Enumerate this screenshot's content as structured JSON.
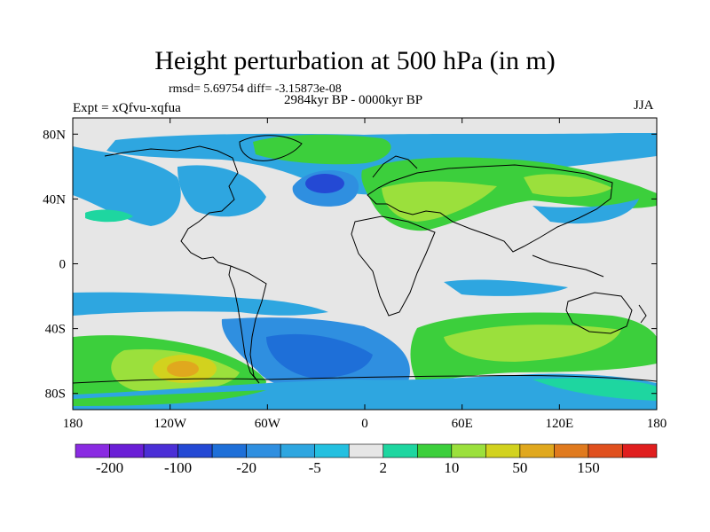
{
  "title": "Height perturbation at 500 hPa (in m)",
  "stats": "rmsd= 5.69754  diff= -3.15873e-08",
  "period": "2984kyr BP - 0000kyr BP",
  "experiment": "Expt = xQfvu-xqfua",
  "season": "JJA",
  "map": {
    "projection": "cylindrical-equidistant",
    "lon_range": [
      -180,
      180
    ],
    "lat_range": [
      -90,
      90
    ],
    "lon_ticks": [
      {
        "value": -180,
        "label": "180"
      },
      {
        "value": -120,
        "label": "120W"
      },
      {
        "value": -60,
        "label": "60W"
      },
      {
        "value": 0,
        "label": "0"
      },
      {
        "value": 60,
        "label": "60E"
      },
      {
        "value": 120,
        "label": "120E"
      },
      {
        "value": 180,
        "label": "180"
      }
    ],
    "lat_ticks": [
      {
        "value": 80,
        "label": "80N"
      },
      {
        "value": 40,
        "label": "40N"
      },
      {
        "value": 0,
        "label": "0"
      },
      {
        "value": -40,
        "label": "40S"
      },
      {
        "value": -80,
        "label": "80S"
      }
    ],
    "background_color": "#e6e6e6"
  },
  "colorbar": {
    "colors": [
      "#8a2be2",
      "#6a1fd6",
      "#4b2fd6",
      "#2449d4",
      "#1e6fd8",
      "#2f8fe0",
      "#2ea6e0",
      "#24c0e0",
      "#e6e6e6",
      "#1ed6a0",
      "#3ccf3c",
      "#9be03c",
      "#d2d21e",
      "#e0a81e",
      "#e07a1e",
      "#e0501e",
      "#e01e1e"
    ],
    "labels": [
      {
        "index": 1,
        "text": "-200"
      },
      {
        "index": 3,
        "text": "-100"
      },
      {
        "index": 5,
        "text": "-20"
      },
      {
        "index": 7,
        "text": "-5"
      },
      {
        "index": 9,
        "text": "2"
      },
      {
        "index": 11,
        "text": "10"
      },
      {
        "index": 13,
        "text": "50"
      },
      {
        "index": 15,
        "text": "150"
      }
    ]
  }
}
